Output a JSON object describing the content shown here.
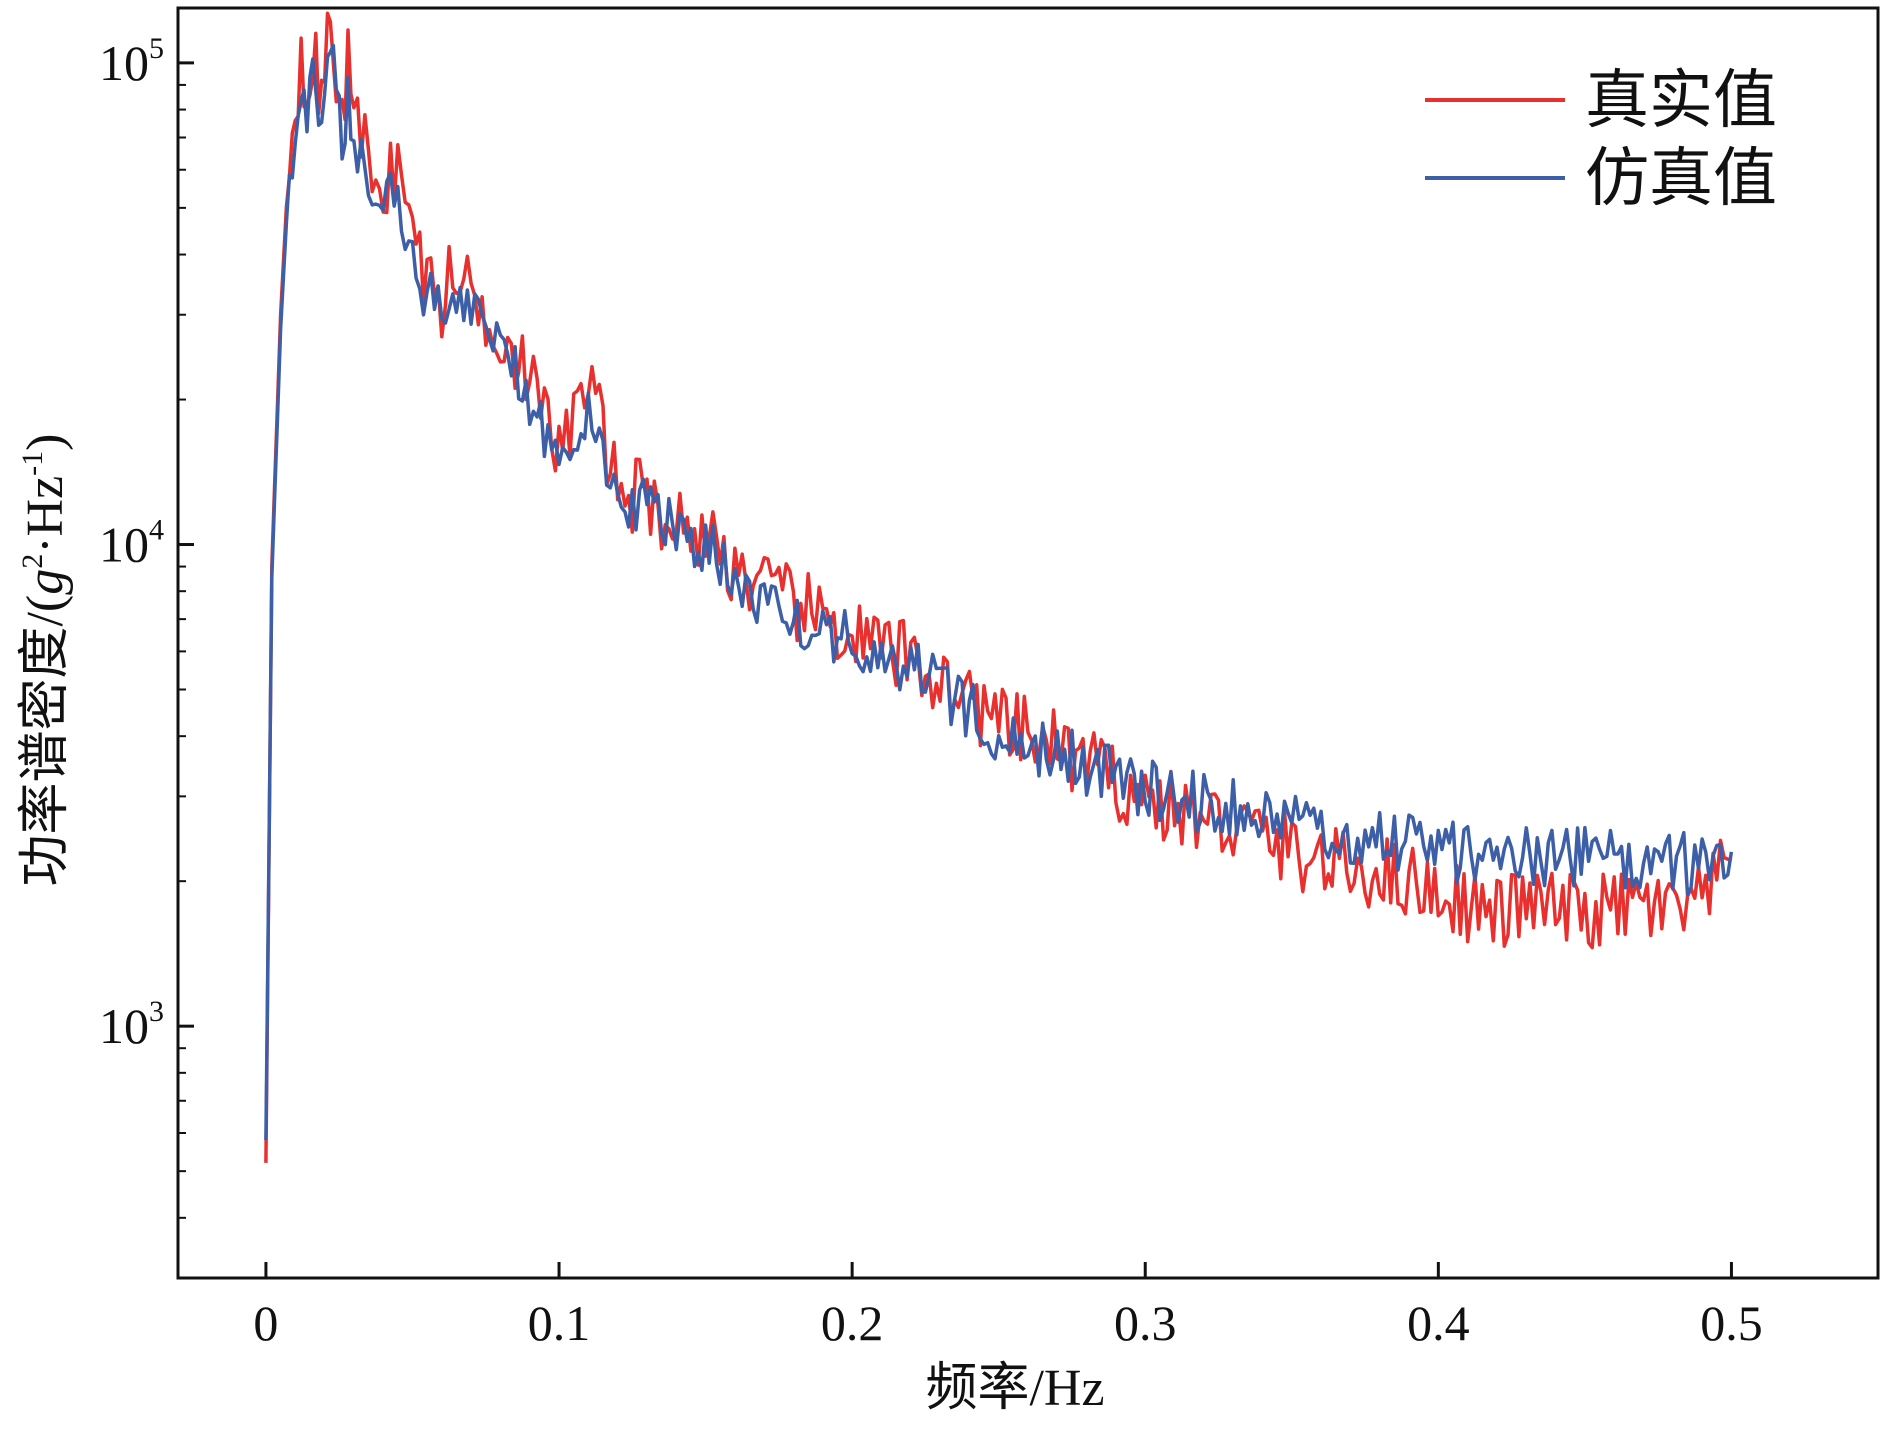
{
  "chart_data": {
    "type": "line",
    "xlabel": "频率/Hz",
    "ylabel": "功率谱密度/(g²·Hz⁻¹)",
    "ylabel_parts": [
      "功率谱密度/(",
      "g",
      "2",
      "·Hz",
      "-1",
      ")"
    ],
    "xlim": [
      -0.03,
      0.55
    ],
    "ylim": [
      300,
      130000
    ],
    "y_scale": "log",
    "x_ticks": [
      0,
      0.1,
      0.2,
      0.3,
      0.4,
      0.5
    ],
    "x_tick_labels": [
      "0",
      "0.1",
      "0.2",
      "0.3",
      "0.4",
      "0.5"
    ],
    "y_ticks": [
      {
        "value": 1000,
        "base": "10",
        "exp": "3"
      },
      {
        "value": 10000,
        "base": "10",
        "exp": "4"
      },
      {
        "value": 100000,
        "base": "10",
        "exp": "5"
      }
    ],
    "grid": false,
    "legend_position": "top-right",
    "series": [
      {
        "name": "真实值",
        "color": "#e8312f",
        "x": [
          0,
          0.002,
          0.005,
          0.008,
          0.01,
          0.012,
          0.014,
          0.016,
          0.018,
          0.02,
          0.022,
          0.024,
          0.026,
          0.028,
          0.03,
          0.035,
          0.04,
          0.045,
          0.05,
          0.055,
          0.06,
          0.065,
          0.07,
          0.075,
          0.08,
          0.085,
          0.09,
          0.095,
          0.1,
          0.105,
          0.11,
          0.115,
          0.12,
          0.13,
          0.14,
          0.15,
          0.16,
          0.17,
          0.18,
          0.19,
          0.2,
          0.21,
          0.22,
          0.23,
          0.24,
          0.25,
          0.26,
          0.27,
          0.28,
          0.29,
          0.3,
          0.31,
          0.32,
          0.33,
          0.34,
          0.35,
          0.36,
          0.37,
          0.38,
          0.39,
          0.4,
          0.41,
          0.42,
          0.43,
          0.44,
          0.45,
          0.46,
          0.47,
          0.48,
          0.49,
          0.5
        ],
        "y": [
          520,
          9000,
          30000,
          65000,
          80000,
          105000,
          90000,
          110000,
          85000,
          100000,
          115000,
          95000,
          80000,
          100000,
          75000,
          65000,
          55000,
          62000,
          45000,
          35000,
          32000,
          38000,
          33000,
          30000,
          28000,
          25000,
          22000,
          18000,
          16000,
          18000,
          22000,
          17000,
          13000,
          12500,
          11000,
          10500,
          9000,
          8000,
          7500,
          7000,
          6500,
          6000,
          5800,
          5200,
          4800,
          4200,
          4000,
          3800,
          3500,
          3200,
          3000,
          2800,
          2700,
          2600,
          2500,
          2300,
          2200,
          2100,
          2100,
          2000,
          1900,
          1800,
          1700,
          1800,
          1750,
          1700,
          1750,
          1800,
          1700,
          1800,
          2200
        ]
      },
      {
        "name": "仿真值",
        "color": "#3d5fa8",
        "x": [
          0,
          0.002,
          0.005,
          0.008,
          0.01,
          0.012,
          0.014,
          0.016,
          0.018,
          0.02,
          0.022,
          0.024,
          0.026,
          0.028,
          0.03,
          0.035,
          0.04,
          0.045,
          0.05,
          0.055,
          0.06,
          0.065,
          0.07,
          0.075,
          0.08,
          0.085,
          0.09,
          0.095,
          0.1,
          0.105,
          0.11,
          0.115,
          0.12,
          0.13,
          0.14,
          0.15,
          0.16,
          0.17,
          0.18,
          0.19,
          0.2,
          0.21,
          0.22,
          0.23,
          0.24,
          0.25,
          0.26,
          0.27,
          0.28,
          0.29,
          0.3,
          0.31,
          0.32,
          0.33,
          0.34,
          0.35,
          0.36,
          0.37,
          0.38,
          0.39,
          0.4,
          0.41,
          0.42,
          0.43,
          0.44,
          0.45,
          0.46,
          0.47,
          0.48,
          0.49,
          0.5
        ],
        "y": [
          580,
          8500,
          28000,
          60000,
          70000,
          85000,
          75000,
          90000,
          72000,
          95000,
          110000,
          80000,
          72000,
          85000,
          65000,
          58000,
          50000,
          55000,
          40000,
          33000,
          30000,
          35000,
          31000,
          28000,
          26000,
          23000,
          20000,
          17000,
          15000,
          17000,
          20000,
          16000,
          12500,
          12000,
          10500,
          10000,
          8500,
          7600,
          7200,
          6800,
          6200,
          5800,
          5500,
          5000,
          4600,
          4100,
          3900,
          3700,
          3500,
          3300,
          3100,
          3000,
          2900,
          2800,
          2700,
          2600,
          2550,
          2500,
          2450,
          2400,
          2300,
          2300,
          2250,
          2300,
          2200,
          2250,
          2200,
          2250,
          2200,
          2150,
          2300
        ]
      }
    ]
  }
}
